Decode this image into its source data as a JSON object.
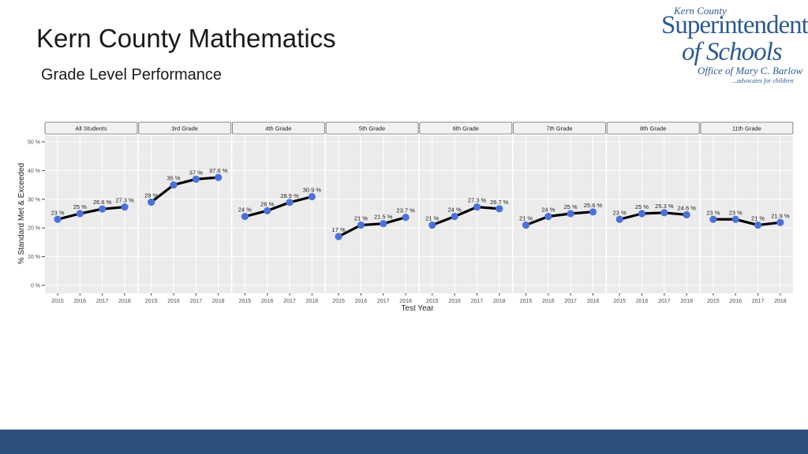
{
  "header": {
    "title": "Kern County Mathematics",
    "subtitle": "Grade Level Performance"
  },
  "logo": {
    "line1": "Kern County",
    "line2": "Superintendent",
    "line3": "of Schools",
    "line4": "Office of Mary C. Barlow",
    "line5": "...advocates for children"
  },
  "colors": {
    "accent": "#4a72d9",
    "line": "#000000",
    "panel": "#ebebeb",
    "strip": "#f2f2f2",
    "footer": "#2d4f7c",
    "logo": "#2c5a96"
  },
  "chart_data": {
    "type": "line",
    "title": "Grade Level Performance",
    "xlabel": "Test Year",
    "ylabel": "% Standard Met & Exceeded",
    "ylim": [
      0,
      50
    ],
    "yticks": [
      0,
      10,
      20,
      30,
      40,
      50
    ],
    "ytick_labels": [
      "0 %",
      "10 %",
      "20 %",
      "30 %",
      "40 %",
      "50 %"
    ],
    "x": [
      "2015",
      "2016",
      "2017",
      "2018"
    ],
    "grid": true,
    "series": [
      {
        "name": "All Students",
        "values": [
          23,
          25,
          26.6,
          27.3
        ],
        "labels": [
          "23 %",
          "25 %",
          "26.6 %",
          "27.3 %"
        ]
      },
      {
        "name": "3rd Grade",
        "values": [
          29,
          35,
          37,
          37.6
        ],
        "labels": [
          "29 %",
          "35 %",
          "37 %",
          "37.6 %"
        ]
      },
      {
        "name": "4th Grade",
        "values": [
          24,
          26,
          28.9,
          30.9
        ],
        "labels": [
          "24 %",
          "26 %",
          "28.9 %",
          "30.9 %"
        ]
      },
      {
        "name": "5th Grade",
        "values": [
          17,
          21,
          21.5,
          23.7
        ],
        "labels": [
          "17 %",
          "21 %",
          "21.5 %",
          "23.7 %"
        ]
      },
      {
        "name": "6th Grade",
        "values": [
          21,
          24,
          27.3,
          26.7
        ],
        "labels": [
          "21 %",
          "24 %",
          "27.3 %",
          "26.7 %"
        ]
      },
      {
        "name": "7th Grade",
        "values": [
          21,
          24,
          25,
          25.6
        ],
        "labels": [
          "21 %",
          "24 %",
          "25 %",
          "25.6 %"
        ]
      },
      {
        "name": "8th Grade",
        "values": [
          23,
          25,
          25.3,
          24.6
        ],
        "labels": [
          "23 %",
          "25 %",
          "25.3 %",
          "24.6 %"
        ]
      },
      {
        "name": "11th Grade",
        "values": [
          23,
          23,
          21,
          21.9
        ],
        "labels": [
          "23 %",
          "23 %",
          "21 %",
          "21.9 %"
        ]
      }
    ]
  }
}
